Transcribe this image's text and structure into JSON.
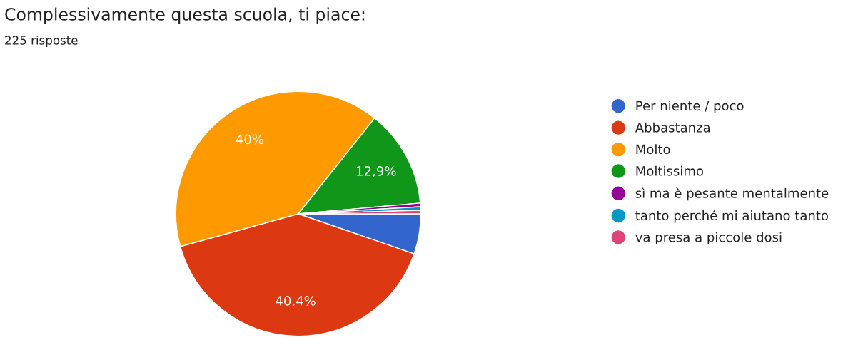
{
  "chart_data": {
    "type": "pie",
    "title": "Complessivamente questa scuola, ti piace:",
    "subtitle": "225 risposte",
    "categories": [
      "Per niente / poco",
      "Abbastanza",
      "Molto",
      "Moltissimo",
      "sì ma è pesante mentalmente",
      "tanto perché mi aiutano tanto",
      "va presa a piccole dosi"
    ],
    "values": [
      5.3,
      40.4,
      40,
      12.9,
      0.47,
      0.47,
      0.46
    ],
    "value_labels": [
      null,
      "40,4%",
      "40%",
      "12,9%",
      null,
      null,
      null
    ],
    "colors": [
      "#3366cc",
      "#dc3912",
      "#ff9900",
      "#109618",
      "#990099",
      "#0099c6",
      "#dd4477"
    ],
    "legend": "right"
  }
}
